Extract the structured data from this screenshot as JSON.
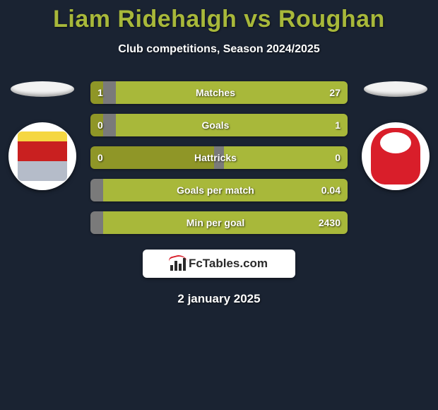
{
  "title": "Liam Ridehalgh vs Roughan",
  "subtitle": "Club competitions, Season 2024/2025",
  "date": "2 january 2025",
  "brand": "FcTables.com",
  "colors": {
    "player_left": "#8f9627",
    "neutral": "#7a7a7a",
    "player_right": "#a8b83a",
    "background": "#1a2332"
  },
  "crest_left_name": "Stevenage",
  "crest_right_name": "Lincoln City",
  "stats": [
    {
      "label": "Matches",
      "left_value": "1",
      "right_value": "27",
      "segments": [
        {
          "color_key": "player_left",
          "pct": 5
        },
        {
          "color_key": "neutral",
          "pct": 5
        },
        {
          "color_key": "player_right",
          "pct": 90
        }
      ]
    },
    {
      "label": "Goals",
      "left_value": "0",
      "right_value": "1",
      "segments": [
        {
          "color_key": "player_left",
          "pct": 5
        },
        {
          "color_key": "neutral",
          "pct": 5
        },
        {
          "color_key": "player_right",
          "pct": 90
        }
      ]
    },
    {
      "label": "Hattricks",
      "left_value": "0",
      "right_value": "0",
      "segments": [
        {
          "color_key": "player_left",
          "pct": 48
        },
        {
          "color_key": "neutral",
          "pct": 4
        },
        {
          "color_key": "player_right",
          "pct": 48
        }
      ]
    },
    {
      "label": "Goals per match",
      "left_value": "",
      "right_value": "0.04",
      "segments": [
        {
          "color_key": "neutral",
          "pct": 5
        },
        {
          "color_key": "player_right",
          "pct": 95
        }
      ]
    },
    {
      "label": "Min per goal",
      "left_value": "",
      "right_value": "2430",
      "segments": [
        {
          "color_key": "neutral",
          "pct": 5
        },
        {
          "color_key": "player_right",
          "pct": 95
        }
      ]
    }
  ]
}
